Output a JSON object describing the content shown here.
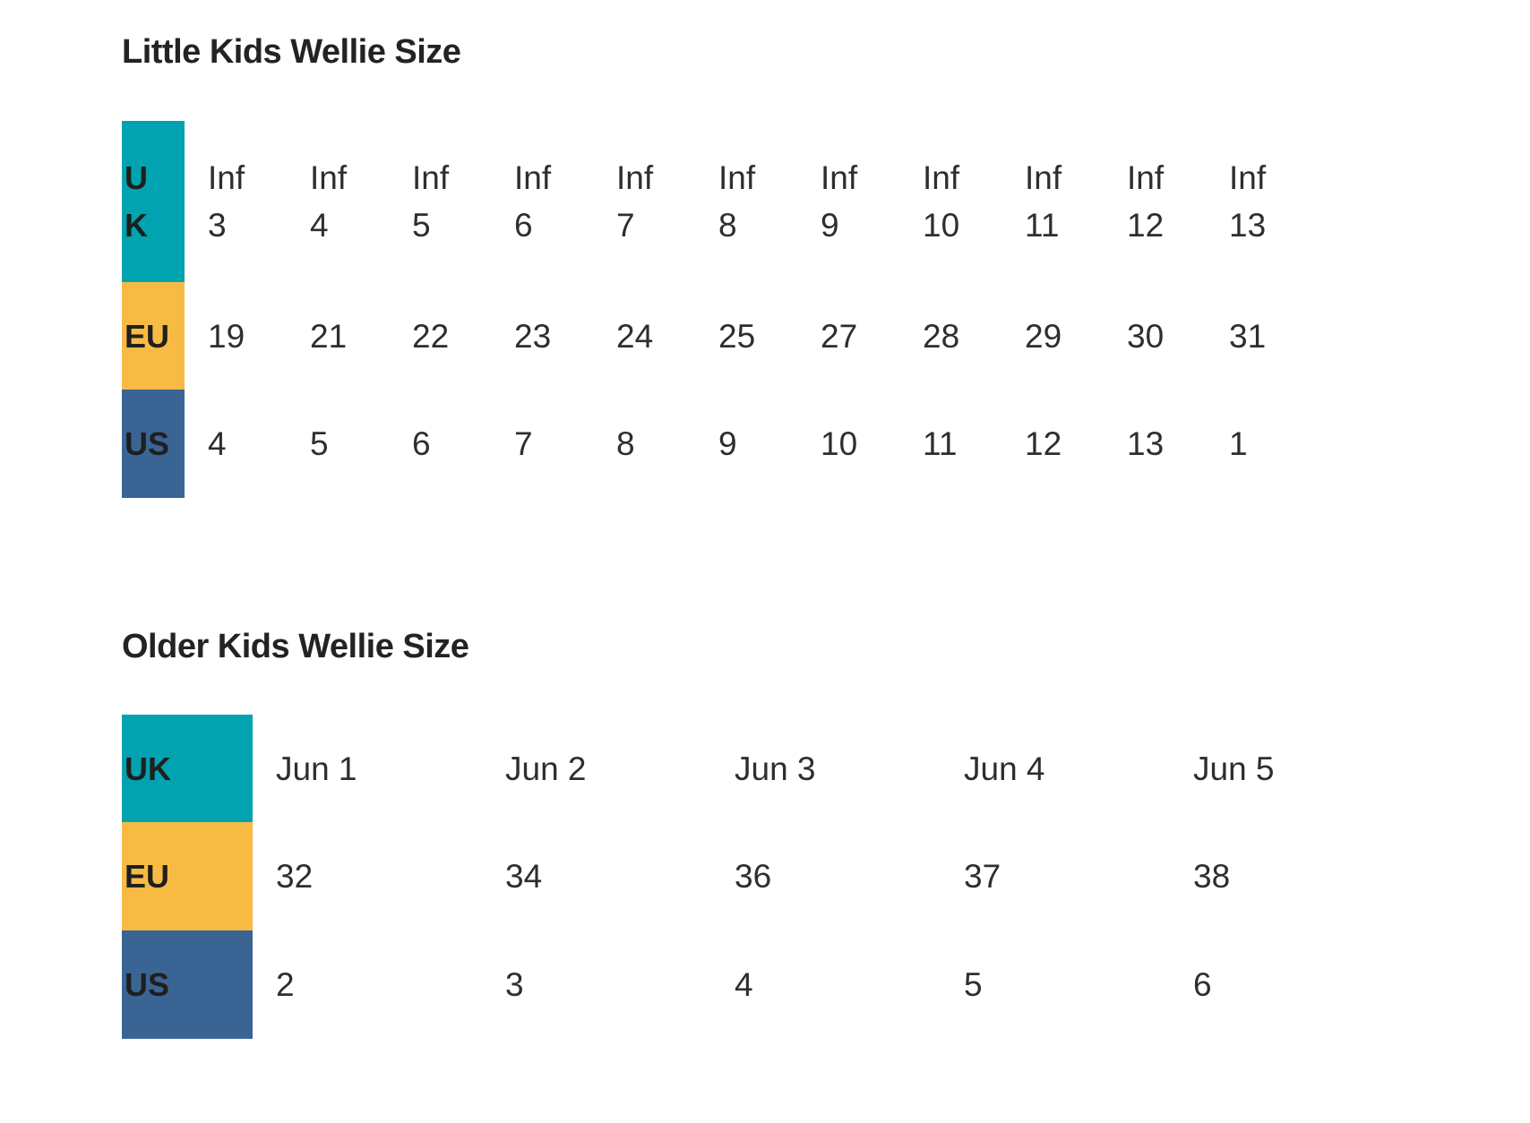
{
  "colors": {
    "teal": "#00A3AF",
    "yellow": "#F7BB43",
    "blue": "#3A6494",
    "title_text": "#232323",
    "label_text": "#1F1F1F",
    "data_text": "#2E2E2E",
    "background": "#FFFFFF"
  },
  "chart_data": [
    {
      "type": "table",
      "title": "Little Kids Wellie Size",
      "rows": [
        {
          "region": "UK",
          "color": "teal",
          "cells": [
            [
              "Inf",
              "3"
            ],
            [
              "Inf",
              "4"
            ],
            [
              "Inf",
              "5"
            ],
            [
              "Inf",
              "6"
            ],
            [
              "Inf",
              "7"
            ],
            [
              "Inf",
              "8"
            ],
            [
              "Inf",
              "9"
            ],
            [
              "Inf",
              "10"
            ],
            [
              "Inf",
              "11"
            ],
            [
              "Inf",
              "12"
            ],
            [
              "Inf",
              "13"
            ]
          ]
        },
        {
          "region": "EU",
          "color": "yellow",
          "cells": [
            [
              "19"
            ],
            [
              "21"
            ],
            [
              "22"
            ],
            [
              "23"
            ],
            [
              "24"
            ],
            [
              "25"
            ],
            [
              "27"
            ],
            [
              "28"
            ],
            [
              "29"
            ],
            [
              "30"
            ],
            [
              "31"
            ]
          ]
        },
        {
          "region": "US",
          "color": "blue",
          "cells": [
            [
              "4"
            ],
            [
              "5"
            ],
            [
              "6"
            ],
            [
              "7"
            ],
            [
              "8"
            ],
            [
              "9"
            ],
            [
              "10"
            ],
            [
              "11"
            ],
            [
              "12"
            ],
            [
              "13"
            ],
            [
              "1"
            ]
          ]
        }
      ]
    },
    {
      "type": "table",
      "title": "Older Kids Wellie Size",
      "rows": [
        {
          "region": "UK",
          "color": "teal",
          "cells": [
            [
              "Jun 1"
            ],
            [
              "Jun 2"
            ],
            [
              "Jun 3"
            ],
            [
              "Jun 4"
            ],
            [
              "Jun 5"
            ]
          ]
        },
        {
          "region": "EU",
          "color": "yellow",
          "cells": [
            [
              "32"
            ],
            [
              "34"
            ],
            [
              "36"
            ],
            [
              "37"
            ],
            [
              "38"
            ]
          ]
        },
        {
          "region": "US",
          "color": "blue",
          "cells": [
            [
              "2"
            ],
            [
              "3"
            ],
            [
              "4"
            ],
            [
              "5"
            ],
            [
              "6"
            ]
          ]
        }
      ]
    }
  ]
}
